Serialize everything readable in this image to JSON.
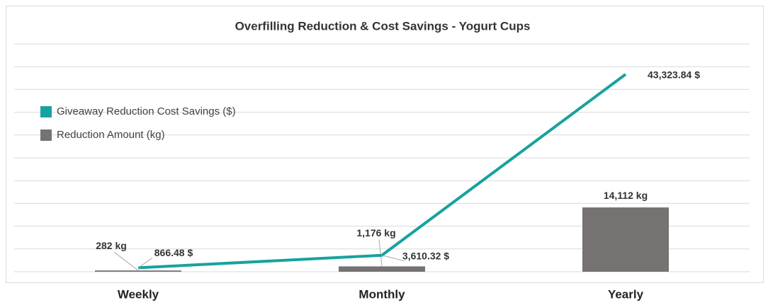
{
  "chart_data": {
    "type": "bar_line",
    "title": "Overfilling Reduction & Cost Savings - Yogurt Cups",
    "categories": [
      "Weekly",
      "Monthly",
      "Yearly"
    ],
    "series": [
      {
        "name": "Giveaway Reduction Cost Savings ($)",
        "type": "line",
        "color": "#17a29f",
        "values": [
          866.48,
          3610.32,
          43323.84
        ],
        "value_labels": [
          "866.48  $",
          "3,610.32  $",
          "43,323.84  $"
        ]
      },
      {
        "name": "Reduction Amount (kg)",
        "type": "bar",
        "color": "#767271",
        "values": [
          282,
          1176,
          14112
        ],
        "value_labels": [
          "282 kg",
          "1,176 kg",
          "14,112 kg"
        ]
      }
    ],
    "ylim": [
      0,
      50000
    ],
    "yticks": [
      0,
      5000,
      10000,
      15000,
      20000,
      25000,
      30000,
      35000,
      40000,
      45000,
      50000
    ],
    "grid": true,
    "legend": "left"
  }
}
